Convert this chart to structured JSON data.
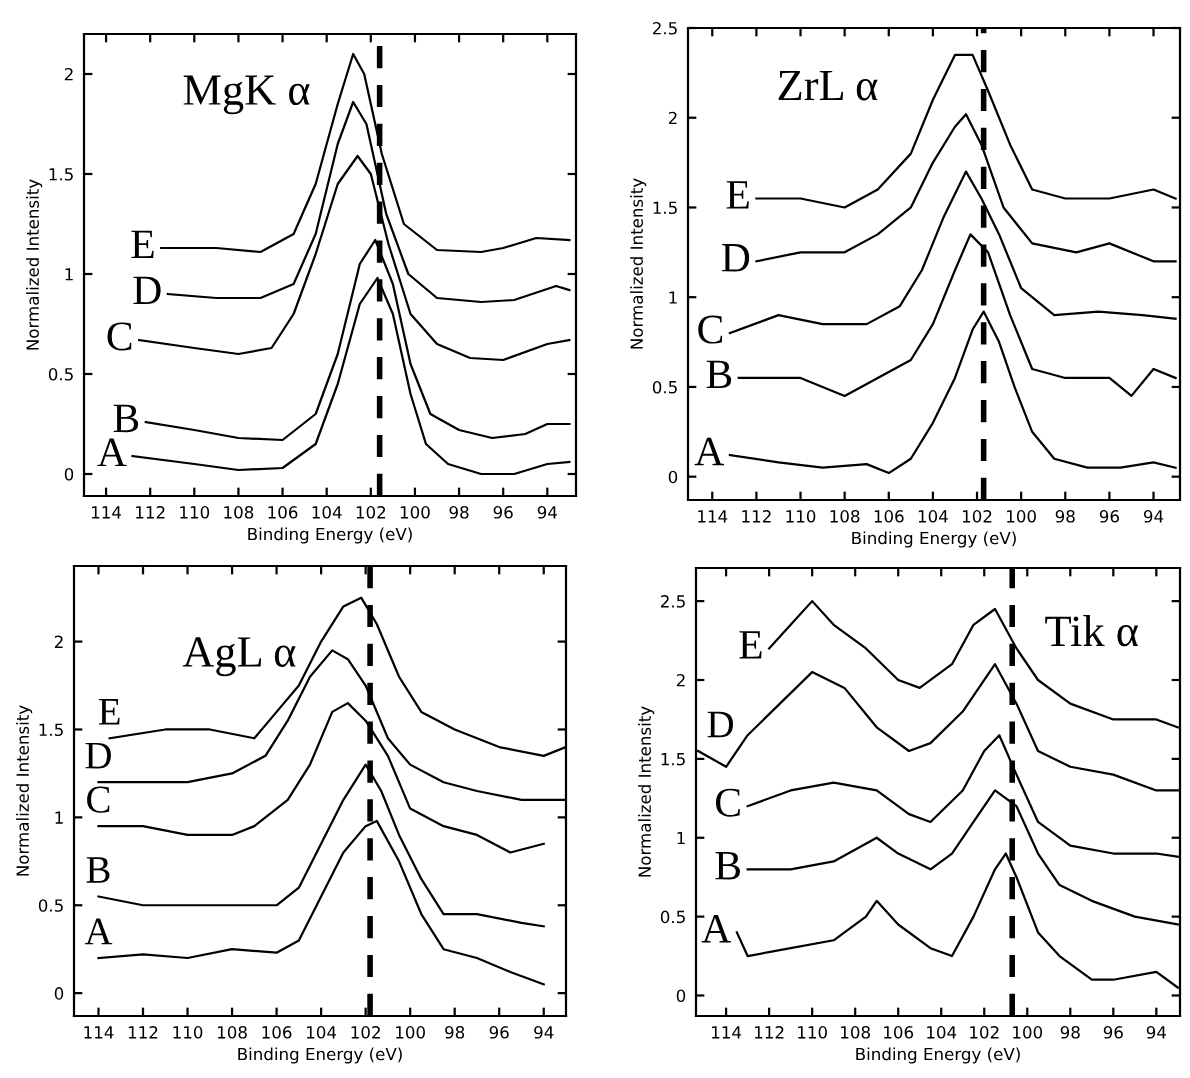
{
  "chart_data": [
    {
      "type": "line",
      "title": "MgK α",
      "xlabel": "Binding Energy (eV)",
      "ylabel": "Normalized Intensity",
      "xlim": [
        115,
        92.7
      ],
      "ylim": [
        -0.11,
        2.2
      ],
      "xticks": [
        114,
        112,
        110,
        108,
        106,
        104,
        102,
        100,
        98,
        96,
        94
      ],
      "yticks": [
        0,
        0.5,
        1,
        1.5,
        2
      ],
      "grid": false,
      "legend": false,
      "ref_lines": [
        {
          "axis": "x",
          "value": 101.6,
          "color": "#000000",
          "line_style": "dashed"
        }
      ],
      "series": [
        {
          "name": "A",
          "color": "#000000",
          "x": [
            112.8,
            110,
            108,
            106,
            104.5,
            103.5,
            102.5,
            101.7,
            101,
            100.2,
            99.5,
            98.5,
            97,
            95.5,
            94,
            93
          ],
          "values": [
            0.09,
            0.05,
            0.02,
            0.03,
            0.15,
            0.45,
            0.85,
            0.98,
            0.8,
            0.4,
            0.15,
            0.05,
            0.0,
            0.0,
            0.05,
            0.06
          ]
        },
        {
          "name": "B",
          "color": "#000000",
          "x": [
            112.2,
            110,
            108,
            106,
            104.5,
            103.5,
            102.5,
            101.8,
            101,
            100.2,
            99.3,
            98,
            96.5,
            95,
            94,
            93
          ],
          "values": [
            0.26,
            0.22,
            0.18,
            0.17,
            0.3,
            0.6,
            1.05,
            1.17,
            0.95,
            0.55,
            0.3,
            0.22,
            0.18,
            0.2,
            0.25,
            0.25
          ]
        },
        {
          "name": "C",
          "color": "#000000",
          "x": [
            112.5,
            110,
            108,
            106.5,
            105.5,
            104.5,
            103.5,
            102.6,
            102,
            101.2,
            100.2,
            99,
            97.5,
            96,
            94,
            93
          ],
          "values": [
            0.67,
            0.63,
            0.6,
            0.63,
            0.8,
            1.1,
            1.45,
            1.59,
            1.5,
            1.15,
            0.8,
            0.65,
            0.58,
            0.57,
            0.65,
            0.67
          ]
        },
        {
          "name": "D",
          "color": "#000000",
          "x": [
            111.2,
            109,
            107,
            105.5,
            104.5,
            103.5,
            102.8,
            102.2,
            101.3,
            100.3,
            99,
            97,
            95.5,
            93.6,
            93
          ],
          "values": [
            0.9,
            0.88,
            0.88,
            0.95,
            1.2,
            1.65,
            1.86,
            1.75,
            1.3,
            1.0,
            0.88,
            0.86,
            0.87,
            0.94,
            0.92
          ]
        },
        {
          "name": "E",
          "color": "#000000",
          "x": [
            111.5,
            109,
            107,
            105.5,
            104.5,
            103.5,
            102.8,
            102.3,
            101.5,
            100.5,
            99,
            97,
            96,
            94.5,
            93
          ],
          "values": [
            1.13,
            1.13,
            1.11,
            1.2,
            1.45,
            1.85,
            2.1,
            2.0,
            1.6,
            1.25,
            1.12,
            1.11,
            1.13,
            1.18,
            1.17
          ]
        }
      ]
    },
    {
      "type": "line",
      "title": "ZrL α",
      "xlabel": "Binding Energy (eV)",
      "ylabel": "Normalized Intensity",
      "xlim": [
        115.1,
        92.8
      ],
      "ylim": [
        -0.13,
        2.5
      ],
      "xticks": [
        114,
        112,
        110,
        108,
        106,
        104,
        102,
        100,
        98,
        96,
        94
      ],
      "yticks": [
        0,
        0.5,
        1,
        1.5,
        2,
        2.5
      ],
      "grid": false,
      "legend": false,
      "ref_lines": [
        {
          "axis": "x",
          "value": 101.7,
          "color": "#000000",
          "line_style": "dashed"
        }
      ],
      "series": [
        {
          "name": "A",
          "color": "#000000",
          "x": [
            113.2,
            111,
            109,
            107,
            106,
            105,
            104,
            103,
            102.2,
            101.7,
            101,
            100.3,
            99.5,
            98.5,
            97,
            95.5,
            94,
            93
          ],
          "values": [
            0.12,
            0.08,
            0.05,
            0.07,
            0.02,
            0.1,
            0.3,
            0.55,
            0.82,
            0.92,
            0.75,
            0.5,
            0.25,
            0.1,
            0.05,
            0.05,
            0.08,
            0.05
          ]
        },
        {
          "name": "B",
          "color": "#000000",
          "x": [
            112.8,
            110,
            108,
            106.5,
            105,
            104,
            103,
            102.3,
            101.5,
            100.5,
            99.5,
            98,
            96,
            95,
            94,
            93
          ],
          "values": [
            0.55,
            0.55,
            0.45,
            0.55,
            0.65,
            0.85,
            1.15,
            1.35,
            1.25,
            0.9,
            0.6,
            0.55,
            0.55,
            0.45,
            0.6,
            0.55
          ]
        },
        {
          "name": "C",
          "color": "#000000",
          "x": [
            113.2,
            111,
            109,
            107,
            105.5,
            104.5,
            103.5,
            102.5,
            101.8,
            101,
            100,
            98.5,
            96.5,
            94.5,
            93
          ],
          "values": [
            0.8,
            0.9,
            0.85,
            0.85,
            0.95,
            1.15,
            1.45,
            1.7,
            1.55,
            1.35,
            1.05,
            0.9,
            0.92,
            0.9,
            0.88
          ]
        },
        {
          "name": "D",
          "color": "#000000",
          "x": [
            112,
            110,
            108,
            106.5,
            105,
            104,
            103,
            102.5,
            101.8,
            100.8,
            99.5,
            97.5,
            96,
            94,
            93
          ],
          "values": [
            1.2,
            1.25,
            1.25,
            1.35,
            1.5,
            1.75,
            1.95,
            2.02,
            1.85,
            1.5,
            1.3,
            1.25,
            1.3,
            1.2,
            1.2
          ]
        },
        {
          "name": "E",
          "color": "#000000",
          "x": [
            112,
            110,
            108,
            106.5,
            105,
            104,
            103,
            102.2,
            101.5,
            100.5,
            99.5,
            98,
            96,
            94,
            93
          ],
          "values": [
            1.55,
            1.55,
            1.5,
            1.6,
            1.8,
            2.1,
            2.35,
            2.35,
            2.15,
            1.85,
            1.6,
            1.55,
            1.55,
            1.6,
            1.55
          ]
        }
      ]
    },
    {
      "type": "line",
      "title": "AgL α",
      "xlabel": "Binding Energy (eV)",
      "ylabel": "Normalized Intensity",
      "xlim": [
        115.1,
        93
      ],
      "ylim": [
        -0.13,
        2.43
      ],
      "xticks": [
        114,
        112,
        110,
        108,
        106,
        104,
        102,
        100,
        98,
        96,
        94
      ],
      "yticks": [
        0,
        0.5,
        1,
        1.5,
        2
      ],
      "grid": false,
      "legend": false,
      "ref_lines": [
        {
          "axis": "x",
          "value": 101.8,
          "color": "#000000",
          "line_style": "dashed"
        }
      ],
      "series": [
        {
          "name": "A",
          "color": "#000000",
          "x": [
            114,
            112,
            110,
            108,
            106,
            105,
            104,
            103,
            102,
            101.5,
            100.5,
            99.5,
            98.5,
            97,
            95.5,
            94
          ],
          "values": [
            0.2,
            0.22,
            0.2,
            0.25,
            0.23,
            0.3,
            0.55,
            0.8,
            0.95,
            0.98,
            0.75,
            0.45,
            0.25,
            0.2,
            0.12,
            0.05
          ]
        },
        {
          "name": "B",
          "color": "#000000",
          "x": [
            114,
            112,
            110,
            108,
            106,
            105,
            104,
            103,
            102,
            101.3,
            100.5,
            99.5,
            98.5,
            97,
            95,
            94
          ],
          "values": [
            0.55,
            0.5,
            0.5,
            0.5,
            0.5,
            0.6,
            0.85,
            1.1,
            1.3,
            1.15,
            0.9,
            0.65,
            0.45,
            0.45,
            0.4,
            0.38
          ]
        },
        {
          "name": "C",
          "color": "#000000",
          "x": [
            114,
            112,
            110,
            108,
            107,
            105.5,
            104.5,
            103.5,
            102.8,
            102,
            101,
            100,
            98.5,
            97,
            95.5,
            94
          ],
          "values": [
            0.95,
            0.95,
            0.9,
            0.9,
            0.95,
            1.1,
            1.3,
            1.6,
            1.65,
            1.55,
            1.35,
            1.05,
            0.95,
            0.9,
            0.8,
            0.85
          ]
        },
        {
          "name": "D",
          "color": "#000000",
          "x": [
            114,
            112,
            110,
            108,
            106.5,
            105.5,
            104.5,
            103.5,
            102.8,
            102,
            101,
            100,
            98.5,
            97,
            95,
            93
          ],
          "values": [
            1.2,
            1.2,
            1.2,
            1.25,
            1.35,
            1.55,
            1.8,
            1.95,
            1.9,
            1.75,
            1.45,
            1.3,
            1.2,
            1.15,
            1.1,
            1.1
          ]
        },
        {
          "name": "E",
          "color": "#000000",
          "x": [
            113.5,
            111,
            109,
            107,
            106,
            105,
            104,
            103,
            102.2,
            101.5,
            100.5,
            99.5,
            98,
            96,
            94,
            93
          ],
          "values": [
            1.45,
            1.5,
            1.5,
            1.45,
            1.6,
            1.75,
            2.0,
            2.2,
            2.25,
            2.1,
            1.8,
            1.6,
            1.5,
            1.4,
            1.35,
            1.4
          ]
        }
      ]
    },
    {
      "type": "line",
      "title": "Tik α",
      "xlabel": "Binding Energy (eV)",
      "ylabel": "Normalized Intensity",
      "xlim": [
        115.4,
        92.9
      ],
      "ylim": [
        -0.13,
        2.71
      ],
      "xticks": [
        114,
        112,
        110,
        108,
        106,
        104,
        102,
        100,
        98,
        96,
        94
      ],
      "yticks": [
        0,
        0.5,
        1,
        1.5,
        2,
        2.5
      ],
      "grid": false,
      "legend": false,
      "ref_lines": [
        {
          "axis": "x",
          "value": 100.7,
          "color": "#000000",
          "line_style": "dashed"
        }
      ],
      "series": [
        {
          "name": "A",
          "color": "#000000",
          "x": [
            113.5,
            113,
            111,
            109,
            107.5,
            107,
            106,
            104.5,
            103.5,
            102.5,
            101.5,
            101,
            100.5,
            99.5,
            98.5,
            97,
            96,
            94,
            93
          ],
          "values": [
            0.4,
            0.25,
            0.3,
            0.35,
            0.5,
            0.6,
            0.45,
            0.3,
            0.25,
            0.5,
            0.8,
            0.9,
            0.75,
            0.4,
            0.25,
            0.1,
            0.1,
            0.15,
            0.05
          ]
        },
        {
          "name": "B",
          "color": "#000000",
          "x": [
            113,
            111,
            109,
            107,
            106,
            104.5,
            103.5,
            102.5,
            101.5,
            100.5,
            99.5,
            98.5,
            97,
            95,
            93
          ],
          "values": [
            0.8,
            0.8,
            0.85,
            1.0,
            0.9,
            0.8,
            0.9,
            1.1,
            1.3,
            1.2,
            0.9,
            0.7,
            0.6,
            0.5,
            0.45
          ]
        },
        {
          "name": "C",
          "color": "#000000",
          "x": [
            113,
            111,
            109,
            107,
            105.5,
            104.5,
            103,
            102,
            101.3,
            100.5,
            99.5,
            98,
            96,
            94,
            93
          ],
          "values": [
            1.2,
            1.3,
            1.35,
            1.3,
            1.15,
            1.1,
            1.3,
            1.55,
            1.65,
            1.4,
            1.1,
            0.95,
            0.9,
            0.9,
            0.88
          ]
        },
        {
          "name": "D",
          "color": "#000000",
          "x": [
            115.3,
            114,
            113,
            111.5,
            110,
            108.5,
            107,
            105.5,
            104.5,
            103,
            101.5,
            100.5,
            99.5,
            98,
            96,
            94,
            93
          ],
          "values": [
            1.55,
            1.45,
            1.65,
            1.85,
            2.05,
            1.95,
            1.7,
            1.55,
            1.6,
            1.8,
            2.1,
            1.85,
            1.55,
            1.45,
            1.4,
            1.3,
            1.3
          ]
        },
        {
          "name": "E",
          "color": "#000000",
          "x": [
            112,
            111,
            110,
            109,
            107.5,
            106,
            105,
            103.5,
            102.5,
            101.5,
            100.5,
            99.5,
            98,
            96,
            94,
            93
          ],
          "values": [
            2.2,
            2.35,
            2.5,
            2.35,
            2.2,
            2.0,
            1.95,
            2.1,
            2.35,
            2.45,
            2.2,
            2.0,
            1.85,
            1.75,
            1.75,
            1.7
          ]
        }
      ]
    }
  ]
}
